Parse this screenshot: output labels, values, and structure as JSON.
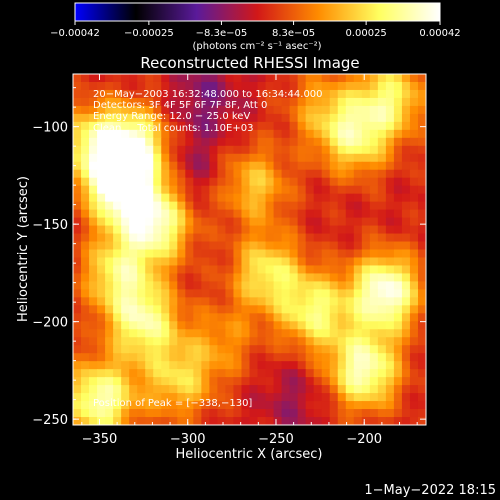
{
  "chart_data": {
    "type": "heatmap",
    "title": "Reconstructed RHESSI Image",
    "xlabel": "Heliocentric X (arcsec)",
    "ylabel": "Heliocentric Y (arcsec)",
    "xlim": [
      -365,
      -165
    ],
    "ylim": [
      -253,
      -73
    ],
    "x_ticks": [
      {
        "value": -350,
        "label": "−350"
      },
      {
        "value": -300,
        "label": "−300"
      },
      {
        "value": -250,
        "label": "−250"
      },
      {
        "value": -200,
        "label": "−200"
      }
    ],
    "y_ticks": [
      {
        "value": -100,
        "label": "−100"
      },
      {
        "value": -150,
        "label": "−150"
      },
      {
        "value": -200,
        "label": "−200"
      },
      {
        "value": -250,
        "label": "−250"
      }
    ],
    "colorbar": {
      "min": -0.00042,
      "max": 0.00042,
      "tick_values": [
        -0.00042,
        -0.00025,
        -8.3e-05,
        8.3e-05,
        0.00025,
        0.00042
      ],
      "tick_labels": [
        "−0.00042",
        "−0.00025",
        "−8.3e−05",
        "8.3e−05",
        "0.00025",
        "0.00042"
      ],
      "unit_label": "(photons cm⁻² s⁻¹ asec⁻²)",
      "colormap_stops": [
        "#0000ff",
        "#000000",
        "#5a1a9a",
        "#d21818",
        "#ff8c00",
        "#ffff60",
        "#ffffff"
      ]
    },
    "annotations": [
      "20−May−2003 16:32:48.000 to 16:34:44.000",
      "Detectors: 3F 4F 5F 6F 7F 8F, Att 0",
      "Energy Range: 12.0 − 25.0 keV",
      "Clean     Total counts: 1.10E+03"
    ],
    "peak_label": "Position of Peak = [−338,−130]",
    "peak_position": [
      -338,
      -130
    ],
    "blobs": [
      {
        "x": -338,
        "y": -130,
        "amp": 0.00042
      },
      {
        "x": -330,
        "y": -110,
        "amp": 0.00033
      },
      {
        "x": -318,
        "y": -150,
        "amp": 0.00034
      },
      {
        "x": -325,
        "y": -200,
        "amp": 0.00031
      },
      {
        "x": -355,
        "y": -108,
        "amp": 0.00024
      },
      {
        "x": -350,
        "y": -240,
        "amp": 0.00035
      },
      {
        "x": -305,
        "y": -230,
        "amp": 0.00022
      },
      {
        "x": -340,
        "y": -175,
        "amp": 0.00026
      },
      {
        "x": -262,
        "y": -130,
        "amp": 0.0002
      },
      {
        "x": -255,
        "y": -175,
        "amp": 0.00026
      },
      {
        "x": -228,
        "y": -195,
        "amp": 0.00028
      },
      {
        "x": -200,
        "y": -225,
        "amp": 0.00036
      },
      {
        "x": -188,
        "y": -185,
        "amp": 0.0004
      },
      {
        "x": -205,
        "y": -105,
        "amp": 0.00028
      },
      {
        "x": -185,
        "y": -85,
        "amp": 0.00026
      },
      {
        "x": -225,
        "y": -90,
        "amp": 0.00014
      },
      {
        "x": -280,
        "y": -210,
        "amp": 0.00013
      },
      {
        "x": -290,
        "y": -85,
        "amp": -0.0001
      },
      {
        "x": -300,
        "y": -120,
        "amp": -8e-05
      },
      {
        "x": -240,
        "y": -240,
        "amp": -7e-05
      }
    ]
  },
  "footer": {
    "date_stamp": "1−May−2022 18:15"
  }
}
